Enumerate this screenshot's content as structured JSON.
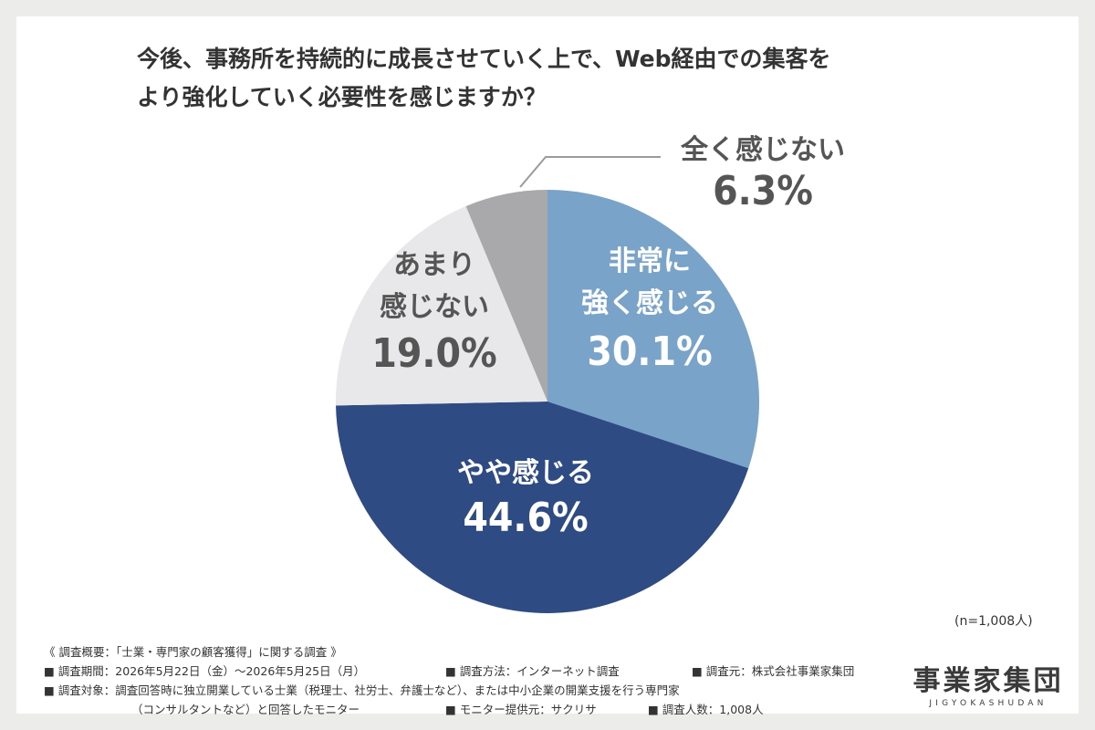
{
  "title": {
    "line1": "今後、事務所を持続的に成長させていく上で、Web経由での集客を",
    "line2": "より強化していく必要性を感じますか？"
  },
  "chart_data": {
    "type": "pie",
    "start": "12 o'clock, clockwise",
    "slices": [
      {
        "label_lines": [
          "非常に",
          "強く感じる"
        ],
        "value": 30.1,
        "display": "30.1%",
        "color": "#79a3c9",
        "text_color": "#ffffff"
      },
      {
        "label_lines": [
          "やや感じる"
        ],
        "value": 44.6,
        "display": "44.6%",
        "color": "#2e4b84",
        "text_color": "#ffffff"
      },
      {
        "label_lines": [
          "あまり",
          "感じない"
        ],
        "value": 19.0,
        "display": "19.0%",
        "color": "#e8e8ea",
        "text_color": "#555555"
      },
      {
        "label_lines": [
          "全く感じない"
        ],
        "value": 6.3,
        "display": "6.3%",
        "color": "#a9a9ab",
        "text_color": "#555555"
      }
    ]
  },
  "sample_note": "(n=1,008人)",
  "footnote": {
    "overview": "《 調査概要：「士業・専門家の顧客獲得」に関する調査 》",
    "period": "■ 調査期間：2026年5月22日（金）〜2026年5月25日（月）",
    "method": "■ 調査方法：インターネット調査",
    "source": "■ 調査元：株式会社事業家集団",
    "target1": "■ 調査対象：調査回答時に独立開業している士業（税理士、社労士、弁護士など）、または中小企業の開業支援を行う専門家",
    "target2": "（コンサルタントなど）と回答したモニター",
    "provider": "■ モニター提供元：サクリサ",
    "count": "■ 調査人数：1,008人"
  },
  "logo": {
    "main": "事業家集団",
    "sub": "JIGYOKASHUDAN"
  }
}
